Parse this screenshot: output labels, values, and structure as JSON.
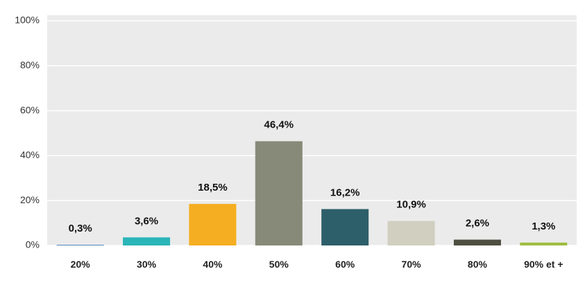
{
  "chart_data": {
    "type": "bar",
    "categories": [
      "20%",
      "30%",
      "40%",
      "50%",
      "60%",
      "70%",
      "80%",
      "90% et +"
    ],
    "values": [
      0.3,
      3.6,
      18.5,
      46.4,
      16.2,
      10.9,
      2.6,
      1.3
    ],
    "value_labels": [
      "0,3%",
      "3,6%",
      "18,5%",
      "46,4%",
      "16,2%",
      "10,9%",
      "2,6%",
      "1,3%"
    ],
    "colors": [
      "#4e81bd",
      "#2ab5b8",
      "#f5ae21",
      "#878a78",
      "#2d5f6a",
      "#d0cfc0",
      "#4f4f41",
      "#9fbd3f"
    ],
    "ylim": [
      0,
      100
    ],
    "yticks": [
      {
        "value": 0,
        "label": "0%"
      },
      {
        "value": 20,
        "label": "20%"
      },
      {
        "value": 40,
        "label": "40%"
      },
      {
        "value": 60,
        "label": "60%"
      },
      {
        "value": 80,
        "label": "80%"
      },
      {
        "value": 100,
        "label": "100%"
      }
    ],
    "grid": true
  }
}
